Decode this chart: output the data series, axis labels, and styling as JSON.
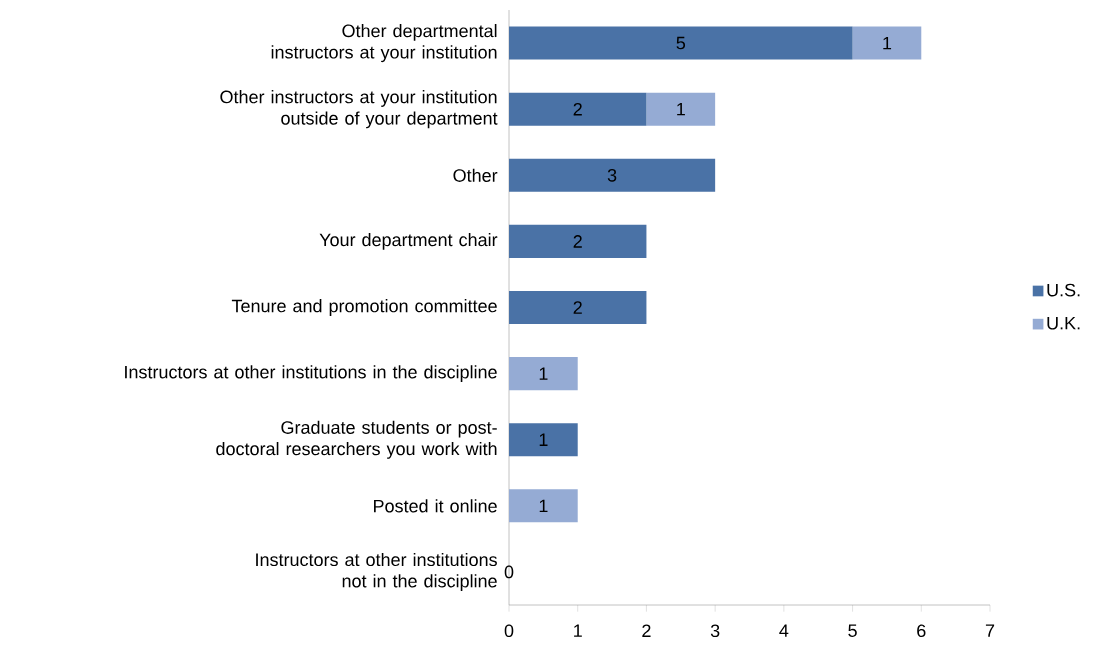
{
  "chart_data": {
    "type": "bar",
    "orientation": "horizontal",
    "stacked": true,
    "categories": [
      "Other departmental instructors at your institution",
      "Other instructors at your institution outside of your department",
      "Other",
      "Your department chair",
      "Tenure and promotion committee",
      "Instructors at other institutions in the discipline",
      "Graduate students or post-doctoral researchers you work with",
      "Posted it online",
      "Instructors at other institutions not in the discipline"
    ],
    "series": [
      {
        "name": "U.S.",
        "color": "#4a72a6",
        "values": [
          5,
          2,
          3,
          2,
          2,
          0,
          1,
          0,
          0
        ],
        "value_labels": [
          "5",
          "2",
          "3",
          "2",
          "2",
          null,
          "1",
          null,
          "0"
        ]
      },
      {
        "name": "U.K.",
        "color": "#95abd4",
        "values": [
          1,
          1,
          0,
          0,
          0,
          1,
          0,
          1,
          0
        ],
        "value_labels": [
          "1",
          "1",
          null,
          null,
          null,
          "1",
          null,
          "1",
          null
        ]
      }
    ],
    "xlim": [
      0,
      7
    ],
    "xticks": [
      0,
      1,
      2,
      3,
      4,
      5,
      6,
      7
    ],
    "grid": false,
    "legend": "right"
  }
}
